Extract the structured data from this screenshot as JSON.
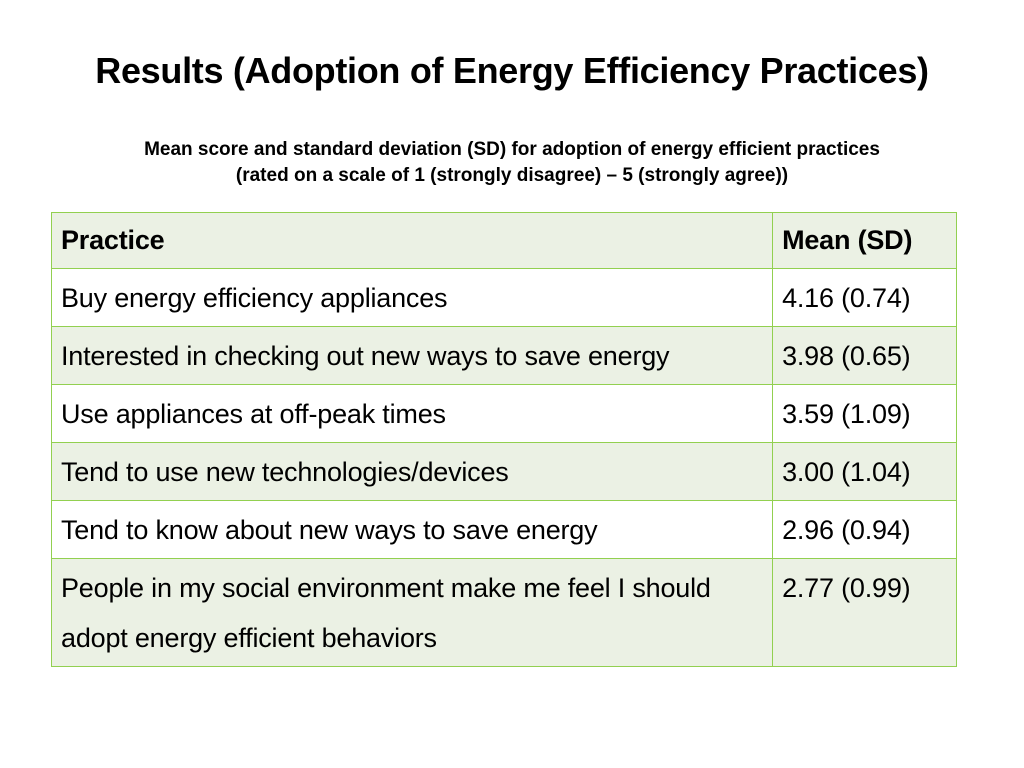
{
  "slide": {
    "title": "Results (Adoption of Energy Efficiency Practices)",
    "subtitle_line1": "Mean score and standard deviation (SD) for adoption of energy efficient practices",
    "subtitle_line2": "(rated on a scale of 1 (strongly disagree) – 5 (strongly agree))"
  },
  "table": {
    "headers": [
      "Practice",
      "Mean (SD)"
    ],
    "rows": [
      {
        "practice": "Buy energy efficiency appliances",
        "mean_sd": "4.16 (0.74)"
      },
      {
        "practice": "Interested in checking out new ways to save energy",
        "mean_sd": "3.98 (0.65)"
      },
      {
        "practice": "Use appliances at off-peak times",
        "mean_sd": "3.59 (1.09)"
      },
      {
        "practice": "Tend to use new technologies/devices",
        "mean_sd": "3.00 (1.04)"
      },
      {
        "practice": "Tend to know about new ways to save energy",
        "mean_sd": "2.96 (0.94)"
      },
      {
        "practice": "People in my social environment make me feel I should adopt energy efficient behaviors",
        "mean_sd": "2.77 (0.99)"
      }
    ]
  },
  "colors": {
    "border": "#92d050",
    "row_fill": "#ebf1e4",
    "row_alt_fill": "#ffffff"
  }
}
